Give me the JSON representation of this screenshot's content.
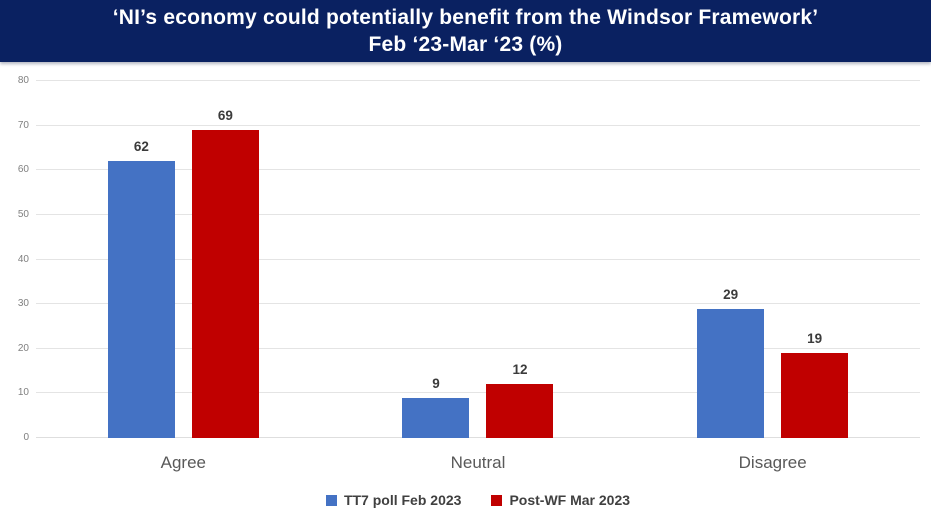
{
  "header": {
    "title_line1": "‘NI’s economy could potentially benefit from the Windsor Framework’",
    "title_line2": "Feb ‘23-Mar ‘23 (%)"
  },
  "colors": {
    "title_bar_bg": "#0A2161",
    "title_text": "#ffffff",
    "series1": "#4472C4",
    "series2": "#C00000",
    "gridline": "#e4e4e4",
    "axis_tick_text": "#7f7f7f",
    "category_text": "#595959",
    "legend_text": "#404040"
  },
  "chart_data": {
    "type": "bar",
    "title": "‘NI’s economy could potentially benefit from the Windsor Framework’ Feb ‘23-Mar ‘23 (%)",
    "categories": [
      "Agree",
      "Neutral",
      "Disagree"
    ],
    "series": [
      {
        "name": "TT7 poll Feb 2023",
        "color": "#4472C4",
        "values": [
          62,
          9,
          29
        ]
      },
      {
        "name": "Post-WF Mar 2023",
        "color": "#C00000",
        "values": [
          69,
          12,
          19
        ]
      }
    ],
    "xlabel": "",
    "ylabel": "",
    "ylim": [
      0,
      80
    ],
    "yticks": [
      0,
      10,
      20,
      30,
      40,
      50,
      60,
      70,
      80
    ],
    "grid": true,
    "data_labels": true,
    "legend_position": "bottom"
  }
}
